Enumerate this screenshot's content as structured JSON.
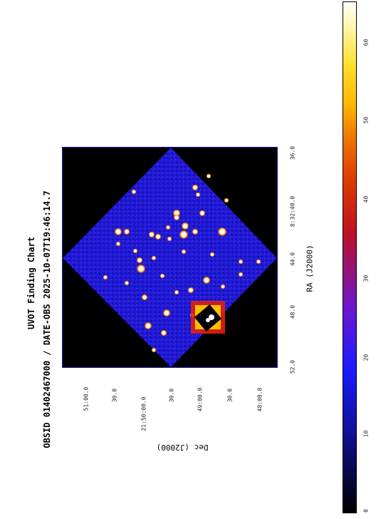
{
  "title_line1": "UVOT Finding Chart",
  "title_line2": "OBSID 01402467000 / DATE-OBS 2025-10-07T19:46:14.7",
  "ra_label": "RA  (J2000)",
  "dec_label": "Dec  (J2000)",
  "ra_ticks": [
    "52.0",
    "48.0",
    "44.0",
    "8:32:40.0",
    "36.0"
  ],
  "dec_ticks": [
    "51:00.0",
    "30.0",
    "21:50:00.0",
    "30.0",
    "49:00.0",
    "30.0",
    "48:00.0"
  ],
  "colorbar": {
    "ticks": [
      "0",
      "10",
      "20",
      "30",
      "40",
      "50",
      "60"
    ],
    "colors": [
      "#000000",
      "#10109a",
      "#1a1aff",
      "#c01020",
      "#f07a00",
      "#ffe030",
      "#ffffff"
    ]
  },
  "colors": {
    "frame_border": "#1a1aa8",
    "background_blue": "#1818d8"
  }
}
